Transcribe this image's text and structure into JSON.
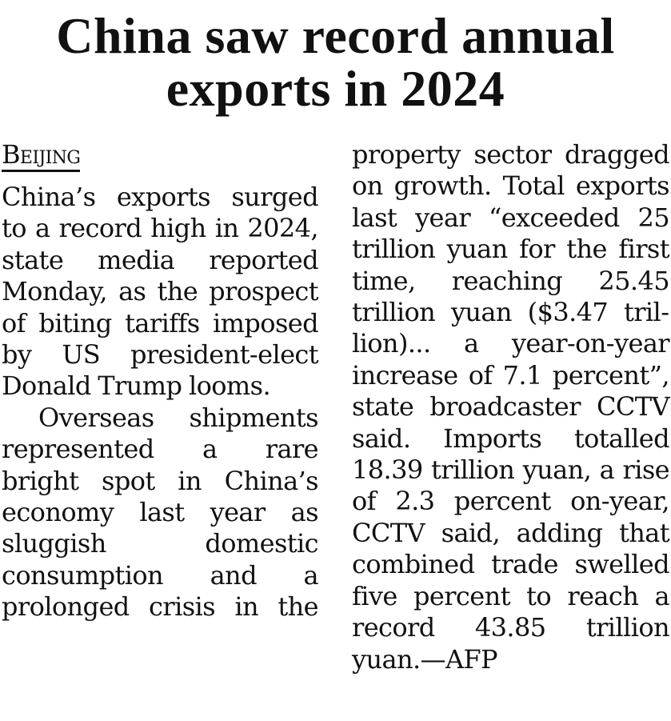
{
  "article": {
    "headline": "China saw record annual exports in 2024",
    "dateline": "Beijing",
    "paragraph_1": "China’s exports surged to a record high in 2024, state media reported Monday, as the prospect of biting tariffs imposed by US president-elect Donald Trump looms.",
    "paragraph_2": "Overseas shipments represented a rare bright spot in China’s economy last year as sluggish do­mestic consumption and a prolonged crisis in the property sector dragged on growth. Total exports last year “exceeded 25 trillion yuan for the first time, reaching 25.45 trillion yuan ($3.47 tril­lion)... a year-on-year increase of 7.1 percent”, state broadcaster CCTV said. Imports totalled 18.39 trillion yuan, a rise of 2.3 percent on-year, CCTV said, adding that combined trade swelled five percent to reach a record 43.85 trillion yuan.—AFP"
  }
}
